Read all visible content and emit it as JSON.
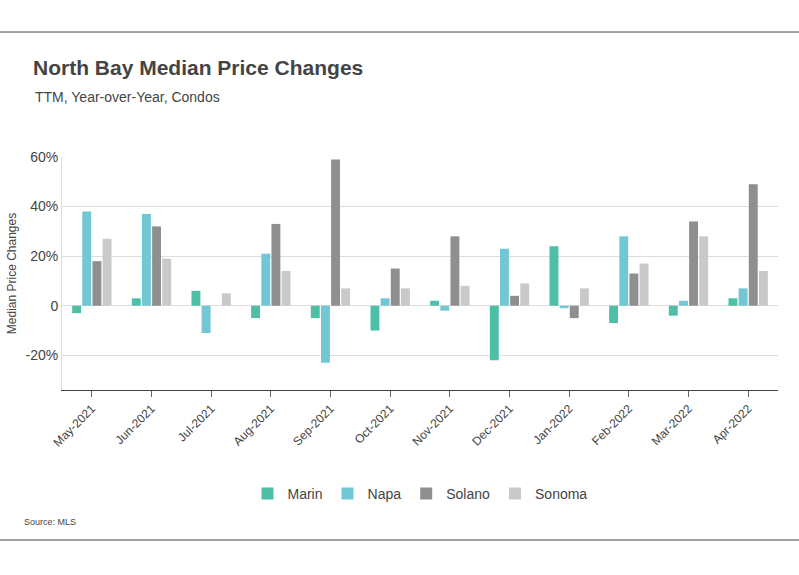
{
  "chart_data": {
    "type": "bar",
    "title": "North Bay Median Price Changes",
    "subtitle": "TTM, Year-over-Year, Condos",
    "y_label": "Median Price Changes",
    "source": "Source: MLS",
    "categories": [
      "May-2021",
      "Jun-2021",
      "Jul-2021",
      "Aug-2021",
      "Sep-2021",
      "Oct-2021",
      "Nov-2021",
      "Dec-2021",
      "Jan-2022",
      "Feb-2022",
      "Mar-2022",
      "Apr-2022"
    ],
    "series": [
      {
        "name": "Marin",
        "color": "#4dbfa6",
        "values": [
          -3,
          3,
          6,
          -5,
          -5,
          -10,
          2,
          -22,
          24,
          -7,
          -4,
          3
        ]
      },
      {
        "name": "Napa",
        "color": "#72c7d4",
        "values": [
          38,
          37,
          -11,
          21,
          -23,
          3,
          -2,
          23,
          -1,
          28,
          2,
          7
        ]
      },
      {
        "name": "Solano",
        "color": "#8f8f8f",
        "values": [
          18,
          32,
          0,
          33,
          59,
          15,
          28,
          4,
          -5,
          13,
          34,
          49
        ]
      },
      {
        "name": "Sonoma",
        "color": "#c9c9c9",
        "values": [
          27,
          19,
          5,
          14,
          7,
          7,
          8,
          9,
          7,
          17,
          28,
          14
        ]
      }
    ],
    "ylim": [
      -34,
      60
    ],
    "yticks": [
      {
        "value": -20,
        "label": "-20%"
      },
      0,
      {
        "value": 20,
        "label": "20%"
      },
      {
        "value": 40,
        "label": "40%"
      },
      {
        "value": 60,
        "label": "60%"
      }
    ],
    "grid": true,
    "legend": "bottom"
  }
}
